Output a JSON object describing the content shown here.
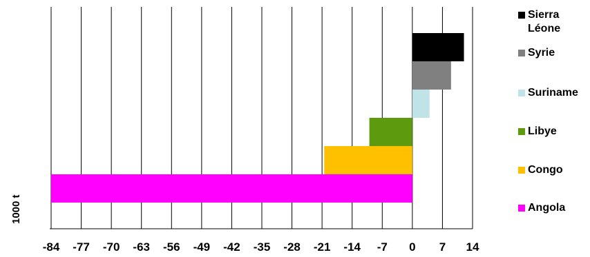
{
  "chart_data": {
    "type": "bar",
    "orientation": "horizontal",
    "ylabel": "1000 t",
    "xlim": [
      -84,
      14
    ],
    "xticks": [
      -84,
      -77,
      -70,
      -63,
      -56,
      -49,
      -42,
      -35,
      -28,
      -21,
      -14,
      -7,
      0,
      7,
      14
    ],
    "grid": "vertical",
    "legend_position": "right",
    "series": [
      {
        "name": "Sierra\nLéone",
        "value": 12,
        "color": "#000000"
      },
      {
        "name": "Syrie",
        "value": 9,
        "color": "#808080"
      },
      {
        "name": "Suriname",
        "value": 4,
        "color": "#bfe3e6"
      },
      {
        "name": "Libye",
        "value": -10,
        "color": "#5e9a0e"
      },
      {
        "name": "Congo",
        "value": -20.5,
        "color": "#ffc000"
      },
      {
        "name": "Angola",
        "value": -84,
        "color": "#ff00ff"
      }
    ]
  }
}
